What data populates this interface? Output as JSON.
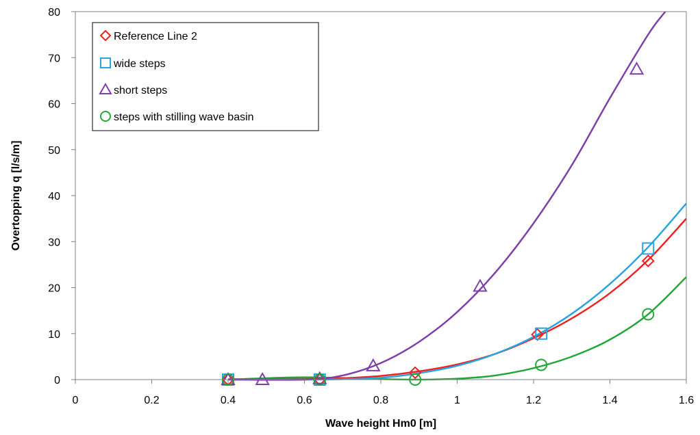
{
  "chart_data": {
    "type": "scatter",
    "xlabel": "Wave height Hm0 [m]",
    "ylabel": "Overtopping q [l/s/m]",
    "xlim": [
      0,
      1.6
    ],
    "ylim": [
      0,
      80
    ],
    "x_ticks": [
      "0",
      "0.2",
      "0.4",
      "0.6",
      "0.8",
      "1",
      "1.2",
      "1.4",
      "1.6"
    ],
    "y_ticks": [
      "0",
      "10",
      "20",
      "30",
      "40",
      "50",
      "60",
      "70",
      "80"
    ],
    "grid": false,
    "legend_position": "top-left",
    "trendlines": true,
    "series": [
      {
        "name": "Reference Line 2",
        "marker": "diamond",
        "color": "#ee2222",
        "x": [
          0.4,
          0.64,
          0.89,
          1.21,
          1.5
        ],
        "y": [
          0,
          0,
          1.5,
          9.8,
          25.8
        ],
        "trend": [
          [
            0.4,
            0.1
          ],
          [
            0.6,
            0.15
          ],
          [
            0.7,
            0.3
          ],
          [
            0.8,
            0.8
          ],
          [
            0.9,
            1.8
          ],
          [
            1.0,
            3.3
          ],
          [
            1.1,
            5.6
          ],
          [
            1.2,
            9.0
          ],
          [
            1.3,
            13.3
          ],
          [
            1.4,
            18.8
          ],
          [
            1.5,
            26.0
          ],
          [
            1.6,
            35.0
          ]
        ]
      },
      {
        "name": "wide steps",
        "marker": "square",
        "color": "#2aa4e0",
        "x": [
          0.4,
          0.64,
          1.22,
          1.5
        ],
        "y": [
          0,
          0,
          10,
          28.5
        ],
        "trend": [
          [
            0.4,
            0.0
          ],
          [
            0.6,
            0.0
          ],
          [
            0.7,
            0.1
          ],
          [
            0.8,
            0.4
          ],
          [
            0.9,
            1.4
          ],
          [
            1.0,
            3.0
          ],
          [
            1.1,
            5.6
          ],
          [
            1.2,
            9.3
          ],
          [
            1.3,
            14.3
          ],
          [
            1.4,
            20.8
          ],
          [
            1.5,
            28.8
          ],
          [
            1.6,
            38.3
          ]
        ]
      },
      {
        "name": "short steps",
        "marker": "triangle",
        "color": "#7f3fa8",
        "x": [
          0.4,
          0.49,
          0.64,
          0.78,
          1.06,
          1.47
        ],
        "y": [
          0,
          0,
          0.2,
          3,
          20.3,
          67.5
        ],
        "trend": [
          [
            0.4,
            0.0
          ],
          [
            0.6,
            0.0
          ],
          [
            0.7,
            0.9
          ],
          [
            0.8,
            3.6
          ],
          [
            0.9,
            8.2
          ],
          [
            1.0,
            14.7
          ],
          [
            1.1,
            23.3
          ],
          [
            1.2,
            34.0
          ],
          [
            1.3,
            46.6
          ],
          [
            1.4,
            61.2
          ],
          [
            1.5,
            75.0
          ],
          [
            1.545,
            80.0
          ]
        ]
      },
      {
        "name": "steps with stilling wave basin",
        "marker": "circle",
        "color": "#22a83a",
        "x": [
          0.4,
          0.64,
          0.89,
          1.22,
          1.5
        ],
        "y": [
          0,
          0,
          0,
          3.2,
          14.2
        ],
        "trend": [
          [
            0.4,
            0.0
          ],
          [
            0.6,
            0.5
          ],
          [
            0.8,
            0.1
          ],
          [
            0.9,
            0.0
          ],
          [
            1.0,
            0.2
          ],
          [
            1.1,
            0.9
          ],
          [
            1.2,
            2.5
          ],
          [
            1.3,
            5.0
          ],
          [
            1.4,
            8.7
          ],
          [
            1.5,
            14.2
          ],
          [
            1.6,
            22.3
          ]
        ]
      }
    ]
  }
}
